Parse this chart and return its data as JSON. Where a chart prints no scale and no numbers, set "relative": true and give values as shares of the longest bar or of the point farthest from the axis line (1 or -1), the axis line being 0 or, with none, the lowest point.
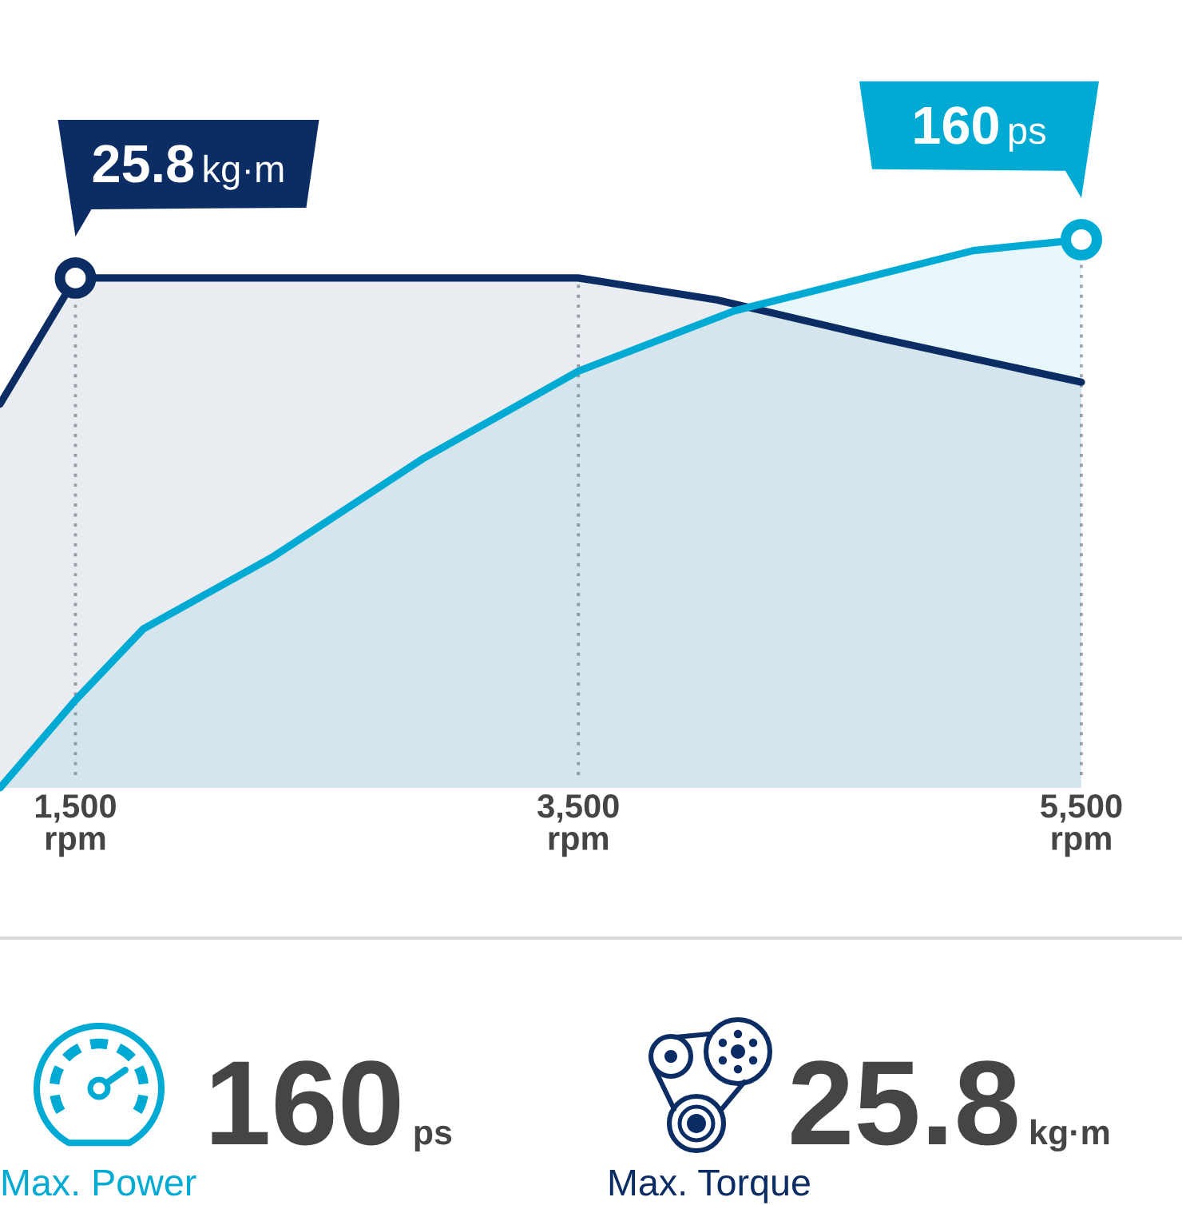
{
  "chart_data": [
    {
      "type": "area",
      "relative": true,
      "xlim": [
        1200,
        5500
      ],
      "xticks": [
        {
          "value": 1500,
          "label": "1,500\nrpm"
        },
        {
          "value": 3500,
          "label": "3,500\nrpm"
        },
        {
          "value": 5500,
          "label": "5,500\nrpm"
        }
      ],
      "grid": "x",
      "tick_labels": "x",
      "series": [
        {
          "color": "#0c2d63",
          "x": [
            1200,
            1500,
            3500,
            4050,
            4700,
            5500
          ],
          "values": [
            0.7,
            0.93,
            0.93,
            0.89,
            0.82,
            0.74
          ]
        },
        {
          "color": "#00aad2",
          "x": [
            1200,
            1500,
            1770,
            2280,
            2880,
            3500,
            4120,
            5070,
            5500
          ],
          "values": [
            0,
            0.16,
            0.29,
            0.42,
            0.6,
            0.76,
            0.87,
            0.98,
            1
          ]
        }
      ],
      "annotations": [
        {
          "text": "25.8 kg·m",
          "x": 1500,
          "y": 0.93
        },
        {
          "text": "160 ps",
          "x": 5500,
          "y": 1
        }
      ]
    },
    {
      "type": "other",
      "categories": [
        "Max. Power",
        "Max. Torque"
      ],
      "values": [
        160,
        25.8
      ],
      "data_labels": true,
      "colors": [
        "#00aad2",
        "#0c2d63"
      ],
      "annotations": [
        "ps",
        "kg·m"
      ]
    }
  ]
}
